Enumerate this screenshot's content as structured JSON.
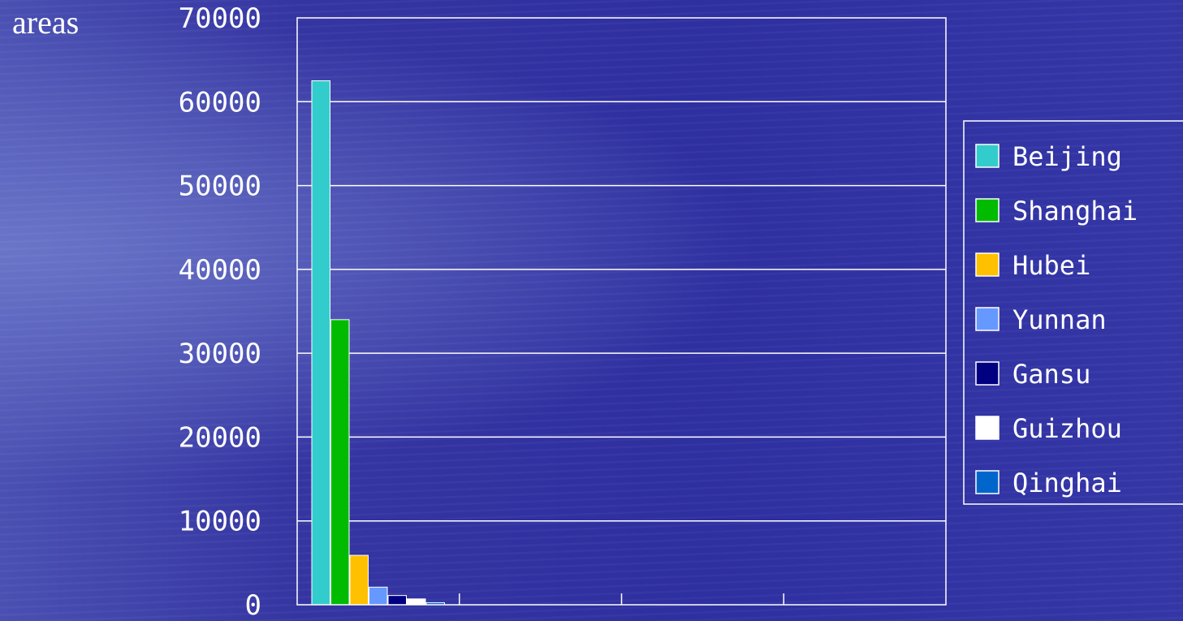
{
  "chart_data": {
    "type": "bar",
    "ylabel": "areas",
    "ylim": [
      0,
      70000
    ],
    "yticks": [
      0,
      10000,
      20000,
      30000,
      40000,
      50000,
      60000,
      70000
    ],
    "grid": true,
    "legend_position": "right",
    "category_slots": 4,
    "series": [
      {
        "name": "Beijing",
        "value": 62500,
        "color": "#33CCCC"
      },
      {
        "name": "Shanghai",
        "value": 34000,
        "color": "#00BB00"
      },
      {
        "name": "Hubei",
        "value": 5900,
        "color": "#FFC000"
      },
      {
        "name": "Yunnan",
        "value": 2100,
        "color": "#6699FF"
      },
      {
        "name": "Gansu",
        "value": 1100,
        "color": "#000080"
      },
      {
        "name": "Guizhou",
        "value": 700,
        "color": "#FFFFFF"
      },
      {
        "name": "Qinghai",
        "value": 250,
        "color": "#0066CC"
      }
    ]
  }
}
